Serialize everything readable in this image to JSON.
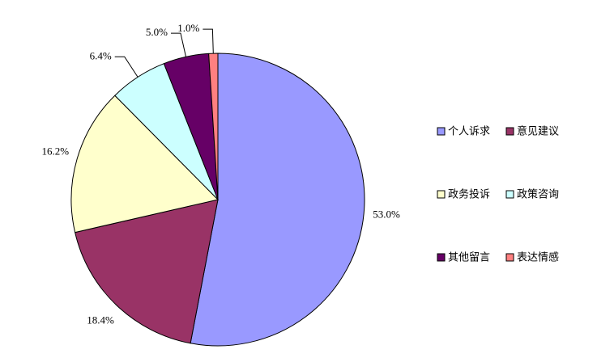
{
  "chart_data": {
    "type": "pie",
    "categories": [
      "个人诉求",
      "意见建议",
      "政务投诉",
      "政策咨询",
      "其他留言",
      "表达情感"
    ],
    "values": [
      53.0,
      18.4,
      16.2,
      6.4,
      5.0,
      1.0
    ],
    "value_labels": [
      "53.0%",
      "18.4%",
      "16.2%",
      "6.4%",
      "5.0%",
      "1.0%"
    ],
    "colors": [
      "#9999ff",
      "#993366",
      "#ffffcc",
      "#ccffff",
      "#660066",
      "#ff8080"
    ],
    "legend": "right"
  }
}
